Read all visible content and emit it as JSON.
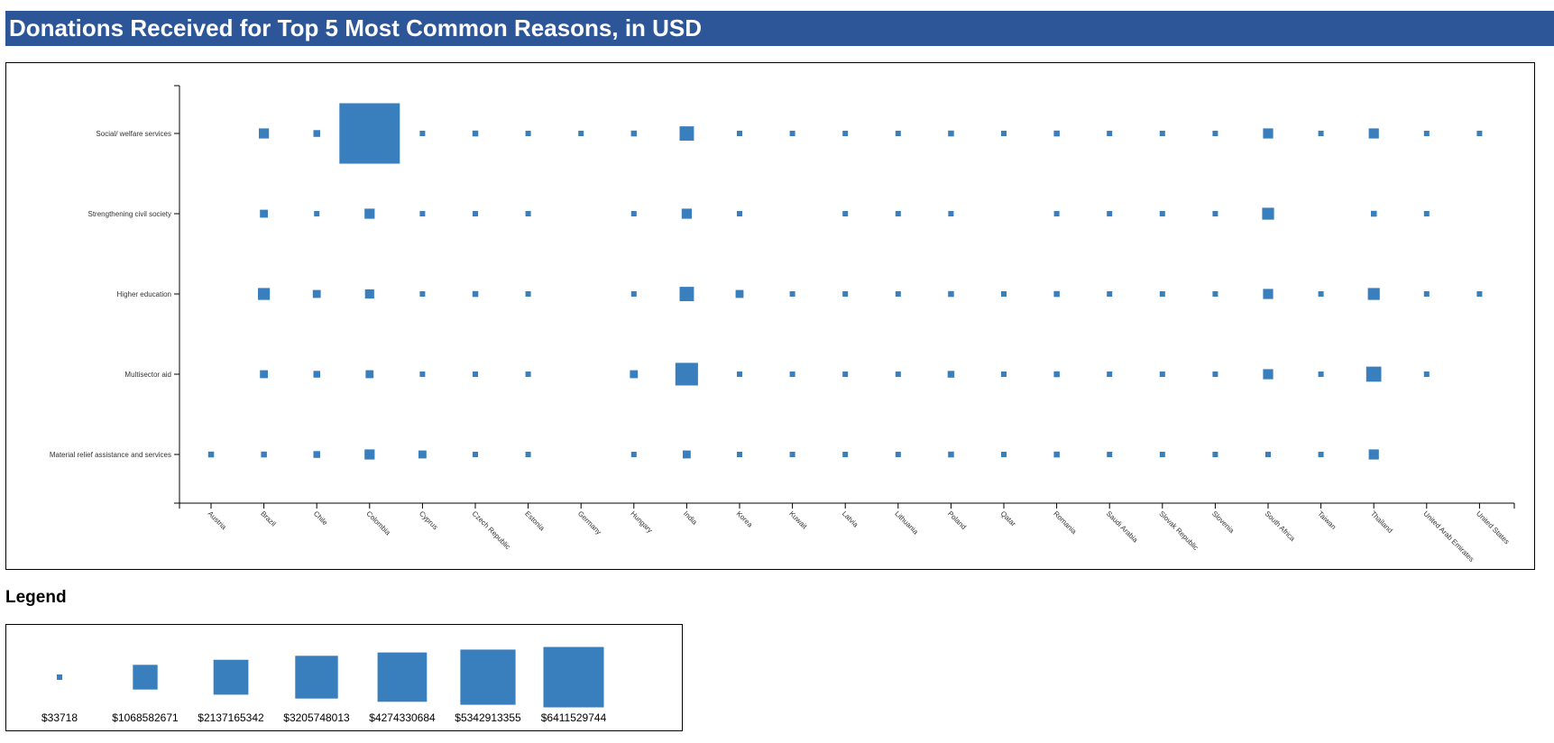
{
  "title": "Donations Received for Top 5 Most Common Reasons, in USD",
  "legend": {
    "title": "Legend",
    "items": [
      {
        "label": "$33718",
        "value": 33718
      },
      {
        "label": "$1068582671",
        "value": 1068582671
      },
      {
        "label": "$2137165342",
        "value": 2137165342
      },
      {
        "label": "$3205748013",
        "value": 3205748013
      },
      {
        "label": "$4274330684",
        "value": 4274330684
      },
      {
        "label": "$5342913355",
        "value": 5342913355
      },
      {
        "label": "$6411529744",
        "value": 6411529744
      }
    ]
  },
  "colors": {
    "title_bar": "#2c5697",
    "marker": "#3a7fbd"
  },
  "chart_data": {
    "type": "scatter",
    "marker_shape": "square",
    "size_encoding": "area proportional to donation amount (USD)",
    "title": "",
    "xlabel": "",
    "ylabel": "",
    "x_categories": [
      "Austria",
      "Brazil",
      "Chile",
      "Colombia",
      "Cyprus",
      "Czech Republic",
      "Estonia",
      "Germany",
      "Hungary",
      "India",
      "Korea",
      "Kuwait",
      "Latvia",
      "Lithuania",
      "Poland",
      "Qatar",
      "Romania",
      "Saudi Arabia",
      "Slovak Republic",
      "Slovenia",
      "South Africa",
      "Taiwan",
      "Thailand",
      "United Arab Emirates",
      "United States"
    ],
    "y_categories": [
      "Social/ welfare services",
      "Strengthening civil society",
      "Higher education",
      "Multisector aid",
      "Material relief assistance and services"
    ],
    "size_range": [
      33718,
      6411529744
    ],
    "points": [
      {
        "x": "Brazil",
        "y": "Social/ welfare services",
        "value": 180000000
      },
      {
        "x": "Chile",
        "y": "Social/ welfare services",
        "value": 80000000
      },
      {
        "x": "Colombia",
        "y": "Social/ welfare services",
        "value": 6411529744
      },
      {
        "x": "Cyprus",
        "y": "Social/ welfare services",
        "value": 50000000
      },
      {
        "x": "Czech Republic",
        "y": "Social/ welfare services",
        "value": 60000000
      },
      {
        "x": "Estonia",
        "y": "Social/ welfare services",
        "value": 50000000
      },
      {
        "x": "Germany",
        "y": "Social/ welfare services",
        "value": 50000000
      },
      {
        "x": "Hungary",
        "y": "Social/ welfare services",
        "value": 60000000
      },
      {
        "x": "India",
        "y": "Social/ welfare services",
        "value": 360000000
      },
      {
        "x": "Korea",
        "y": "Social/ welfare services",
        "value": 50000000
      },
      {
        "x": "Kuwait",
        "y": "Social/ welfare services",
        "value": 50000000
      },
      {
        "x": "Latvia",
        "y": "Social/ welfare services",
        "value": 50000000
      },
      {
        "x": "Lithuania",
        "y": "Social/ welfare services",
        "value": 50000000
      },
      {
        "x": "Poland",
        "y": "Social/ welfare services",
        "value": 60000000
      },
      {
        "x": "Qatar",
        "y": "Social/ welfare services",
        "value": 50000000
      },
      {
        "x": "Romania",
        "y": "Social/ welfare services",
        "value": 60000000
      },
      {
        "x": "Saudi Arabia",
        "y": "Social/ welfare services",
        "value": 50000000
      },
      {
        "x": "Slovak Republic",
        "y": "Social/ welfare services",
        "value": 50000000
      },
      {
        "x": "Slovenia",
        "y": "Social/ welfare services",
        "value": 50000000
      },
      {
        "x": "South Africa",
        "y": "Social/ welfare services",
        "value": 180000000
      },
      {
        "x": "Taiwan",
        "y": "Social/ welfare services",
        "value": 50000000
      },
      {
        "x": "Thailand",
        "y": "Social/ welfare services",
        "value": 180000000
      },
      {
        "x": "United Arab Emirates",
        "y": "Social/ welfare services",
        "value": 50000000
      },
      {
        "x": "United States",
        "y": "Social/ welfare services",
        "value": 50000000
      },
      {
        "x": "Brazil",
        "y": "Strengthening civil society",
        "value": 110000000
      },
      {
        "x": "Chile",
        "y": "Strengthening civil society",
        "value": 50000000
      },
      {
        "x": "Colombia",
        "y": "Strengthening civil society",
        "value": 180000000
      },
      {
        "x": "Cyprus",
        "y": "Strengthening civil society",
        "value": 50000000
      },
      {
        "x": "Czech Republic",
        "y": "Strengthening civil society",
        "value": 50000000
      },
      {
        "x": "Estonia",
        "y": "Strengthening civil society",
        "value": 50000000
      },
      {
        "x": "Hungary",
        "y": "Strengthening civil society",
        "value": 50000000
      },
      {
        "x": "India",
        "y": "Strengthening civil society",
        "value": 180000000
      },
      {
        "x": "Korea",
        "y": "Strengthening civil society",
        "value": 50000000
      },
      {
        "x": "Latvia",
        "y": "Strengthening civil society",
        "value": 50000000
      },
      {
        "x": "Lithuania",
        "y": "Strengthening civil society",
        "value": 50000000
      },
      {
        "x": "Poland",
        "y": "Strengthening civil society",
        "value": 50000000
      },
      {
        "x": "Romania",
        "y": "Strengthening civil society",
        "value": 50000000
      },
      {
        "x": "Saudi Arabia",
        "y": "Strengthening civil society",
        "value": 50000000
      },
      {
        "x": "Slovak Republic",
        "y": "Strengthening civil society",
        "value": 50000000
      },
      {
        "x": "Slovenia",
        "y": "Strengthening civil society",
        "value": 50000000
      },
      {
        "x": "South Africa",
        "y": "Strengthening civil society",
        "value": 250000000
      },
      {
        "x": "Thailand",
        "y": "Strengthening civil society",
        "value": 60000000
      },
      {
        "x": "United Arab Emirates",
        "y": "Strengthening civil society",
        "value": 50000000
      },
      {
        "x": "Brazil",
        "y": "Higher education",
        "value": 250000000
      },
      {
        "x": "Chile",
        "y": "Higher education",
        "value": 110000000
      },
      {
        "x": "Colombia",
        "y": "Higher education",
        "value": 150000000
      },
      {
        "x": "Cyprus",
        "y": "Higher education",
        "value": 50000000
      },
      {
        "x": "Czech Republic",
        "y": "Higher education",
        "value": 60000000
      },
      {
        "x": "Estonia",
        "y": "Higher education",
        "value": 50000000
      },
      {
        "x": "Hungary",
        "y": "Higher education",
        "value": 50000000
      },
      {
        "x": "India",
        "y": "Higher education",
        "value": 360000000
      },
      {
        "x": "Korea",
        "y": "Higher education",
        "value": 110000000
      },
      {
        "x": "Kuwait",
        "y": "Higher education",
        "value": 50000000
      },
      {
        "x": "Latvia",
        "y": "Higher education",
        "value": 50000000
      },
      {
        "x": "Lithuania",
        "y": "Higher education",
        "value": 50000000
      },
      {
        "x": "Poland",
        "y": "Higher education",
        "value": 60000000
      },
      {
        "x": "Qatar",
        "y": "Higher education",
        "value": 50000000
      },
      {
        "x": "Romania",
        "y": "Higher education",
        "value": 60000000
      },
      {
        "x": "Saudi Arabia",
        "y": "Higher education",
        "value": 50000000
      },
      {
        "x": "Slovak Republic",
        "y": "Higher education",
        "value": 50000000
      },
      {
        "x": "Slovenia",
        "y": "Higher education",
        "value": 50000000
      },
      {
        "x": "South Africa",
        "y": "Higher education",
        "value": 180000000
      },
      {
        "x": "Taiwan",
        "y": "Higher education",
        "value": 50000000
      },
      {
        "x": "Thailand",
        "y": "Higher education",
        "value": 250000000
      },
      {
        "x": "United Arab Emirates",
        "y": "Higher education",
        "value": 50000000
      },
      {
        "x": "United States",
        "y": "Higher education",
        "value": 50000000
      },
      {
        "x": "Brazil",
        "y": "Multisector aid",
        "value": 110000000
      },
      {
        "x": "Chile",
        "y": "Multisector aid",
        "value": 80000000
      },
      {
        "x": "Colombia",
        "y": "Multisector aid",
        "value": 110000000
      },
      {
        "x": "Cyprus",
        "y": "Multisector aid",
        "value": 50000000
      },
      {
        "x": "Czech Republic",
        "y": "Multisector aid",
        "value": 50000000
      },
      {
        "x": "Estonia",
        "y": "Multisector aid",
        "value": 50000000
      },
      {
        "x": "Hungary",
        "y": "Multisector aid",
        "value": 110000000
      },
      {
        "x": "India",
        "y": "Multisector aid",
        "value": 900000000
      },
      {
        "x": "Korea",
        "y": "Multisector aid",
        "value": 50000000
      },
      {
        "x": "Kuwait",
        "y": "Multisector aid",
        "value": 50000000
      },
      {
        "x": "Latvia",
        "y": "Multisector aid",
        "value": 50000000
      },
      {
        "x": "Lithuania",
        "y": "Multisector aid",
        "value": 50000000
      },
      {
        "x": "Poland",
        "y": "Multisector aid",
        "value": 80000000
      },
      {
        "x": "Qatar",
        "y": "Multisector aid",
        "value": 50000000
      },
      {
        "x": "Romania",
        "y": "Multisector aid",
        "value": 60000000
      },
      {
        "x": "Saudi Arabia",
        "y": "Multisector aid",
        "value": 50000000
      },
      {
        "x": "Slovak Republic",
        "y": "Multisector aid",
        "value": 50000000
      },
      {
        "x": "Slovenia",
        "y": "Multisector aid",
        "value": 50000000
      },
      {
        "x": "South Africa",
        "y": "Multisector aid",
        "value": 180000000
      },
      {
        "x": "Taiwan",
        "y": "Multisector aid",
        "value": 50000000
      },
      {
        "x": "Thailand",
        "y": "Multisector aid",
        "value": 400000000
      },
      {
        "x": "United Arab Emirates",
        "y": "Multisector aid",
        "value": 50000000
      },
      {
        "x": "Austria",
        "y": "Material relief assistance and services",
        "value": 60000000
      },
      {
        "x": "Brazil",
        "y": "Material relief assistance and services",
        "value": 60000000
      },
      {
        "x": "Chile",
        "y": "Material relief assistance and services",
        "value": 80000000
      },
      {
        "x": "Colombia",
        "y": "Material relief assistance and services",
        "value": 180000000
      },
      {
        "x": "Cyprus",
        "y": "Material relief assistance and services",
        "value": 110000000
      },
      {
        "x": "Czech Republic",
        "y": "Material relief assistance and services",
        "value": 50000000
      },
      {
        "x": "Estonia",
        "y": "Material relief assistance and services",
        "value": 50000000
      },
      {
        "x": "Hungary",
        "y": "Material relief assistance and services",
        "value": 50000000
      },
      {
        "x": "India",
        "y": "Material relief assistance and services",
        "value": 110000000
      },
      {
        "x": "Korea",
        "y": "Material relief assistance and services",
        "value": 50000000
      },
      {
        "x": "Kuwait",
        "y": "Material relief assistance and services",
        "value": 50000000
      },
      {
        "x": "Latvia",
        "y": "Material relief assistance and services",
        "value": 50000000
      },
      {
        "x": "Lithuania",
        "y": "Material relief assistance and services",
        "value": 50000000
      },
      {
        "x": "Poland",
        "y": "Material relief assistance and services",
        "value": 60000000
      },
      {
        "x": "Qatar",
        "y": "Material relief assistance and services",
        "value": 50000000
      },
      {
        "x": "Romania",
        "y": "Material relief assistance and services",
        "value": 60000000
      },
      {
        "x": "Saudi Arabia",
        "y": "Material relief assistance and services",
        "value": 50000000
      },
      {
        "x": "Slovak Republic",
        "y": "Material relief assistance and services",
        "value": 50000000
      },
      {
        "x": "Slovenia",
        "y": "Material relief assistance and services",
        "value": 50000000
      },
      {
        "x": "South Africa",
        "y": "Material relief assistance and services",
        "value": 50000000
      },
      {
        "x": "Taiwan",
        "y": "Material relief assistance and services",
        "value": 50000000
      },
      {
        "x": "Thailand",
        "y": "Material relief assistance and services",
        "value": 180000000
      }
    ]
  }
}
